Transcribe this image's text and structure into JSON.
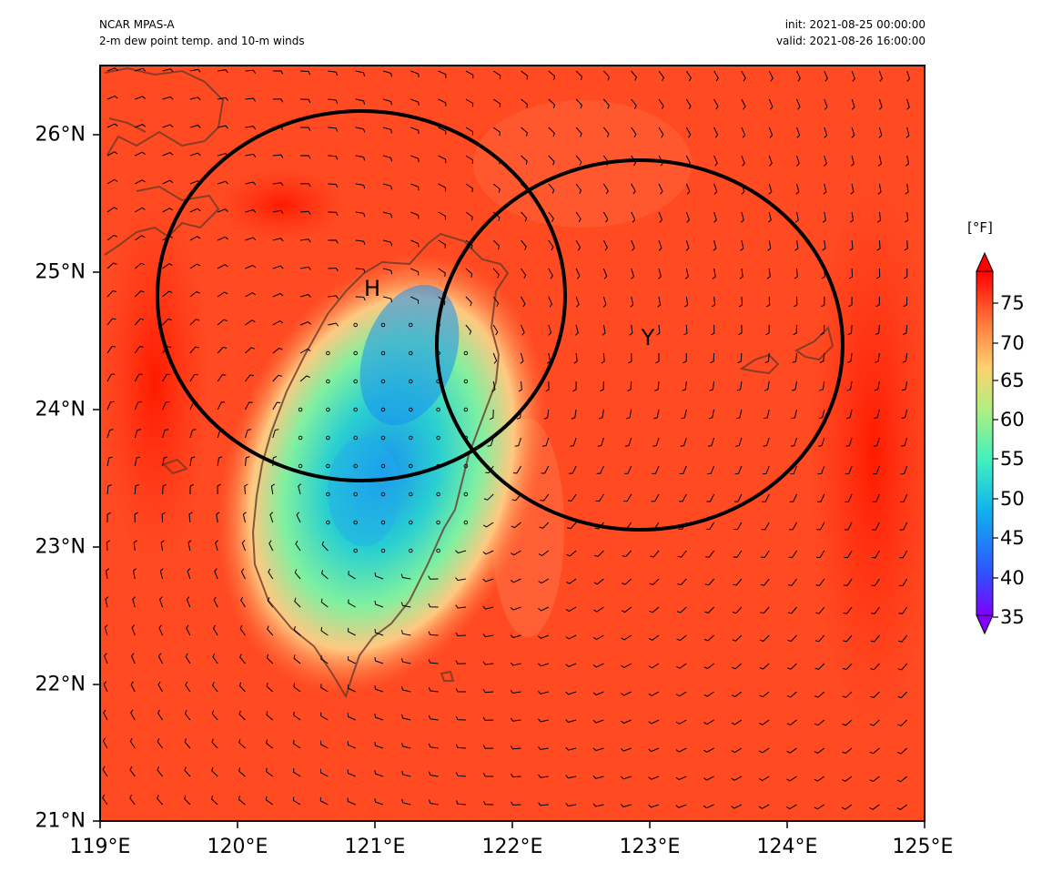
{
  "header": {
    "model": "NCAR MPAS-A",
    "field": "2-m dew point temp. and 10-m winds",
    "init": "init: 2021-08-25 00:00:00",
    "valid": "valid: 2021-08-26 16:00:00"
  },
  "map": {
    "lon_ticks": [
      "119°E",
      "120°E",
      "121°E",
      "122°E",
      "123°E",
      "124°E",
      "125°E"
    ],
    "lat_ticks": [
      "26°N",
      "25°N",
      "24°N",
      "23°N",
      "22°N",
      "21°N"
    ],
    "extent": {
      "lon": [
        119,
        125
      ],
      "lat": [
        21,
        26.5
      ]
    },
    "markers": [
      {
        "label": "H",
        "lon": 120.99,
        "lat": 24.88
      },
      {
        "label": "Y",
        "lon": 122.99,
        "lat": 24.52
      }
    ],
    "range_circles": [
      {
        "center_lon": 120.9,
        "center_lat": 24.82,
        "radius_deg_lat": 1.35
      },
      {
        "center_lon": 122.95,
        "center_lat": 24.47,
        "radius_deg_lat": 1.35
      }
    ]
  },
  "colorbar": {
    "unit": "[°F]",
    "ticks": [
      "75",
      "70",
      "65",
      "60",
      "55",
      "50",
      "45",
      "40",
      "35"
    ],
    "colors": {
      "max": "#ff0000",
      "warm": "#ff5a28",
      "mid": "#ffb070",
      "cool": "#7af0b0",
      "cold": "#1aa0f0",
      "min": "#8000ff"
    }
  }
}
